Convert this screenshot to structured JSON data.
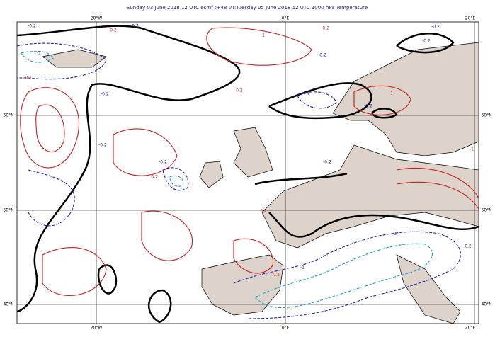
{
  "title": "Sunday 03 June 2018 12 UTC ecmf t+48 VT:Tuesday 05 June 2018 12 UTC 1000 hPa  Temperature",
  "longitude_labels": [
    "20°W",
    "0°E",
    "20°E"
  ],
  "latitude_labels": [
    "60°N",
    "50°N",
    "40°N"
  ],
  "contour_labels": [
    "-0.2",
    "0.2",
    "-0.2",
    "1",
    "0.2",
    "-0.2",
    "-0.2",
    "-0.2",
    "-1",
    "0.2",
    "-0.2",
    "0.2",
    "-0.2",
    "-0.2",
    "1",
    "-0.2",
    "-0.2",
    "0.2",
    "-0.2",
    "1",
    "0.2",
    "-1",
    "0.2",
    "-1",
    "-0.2"
  ]
}
